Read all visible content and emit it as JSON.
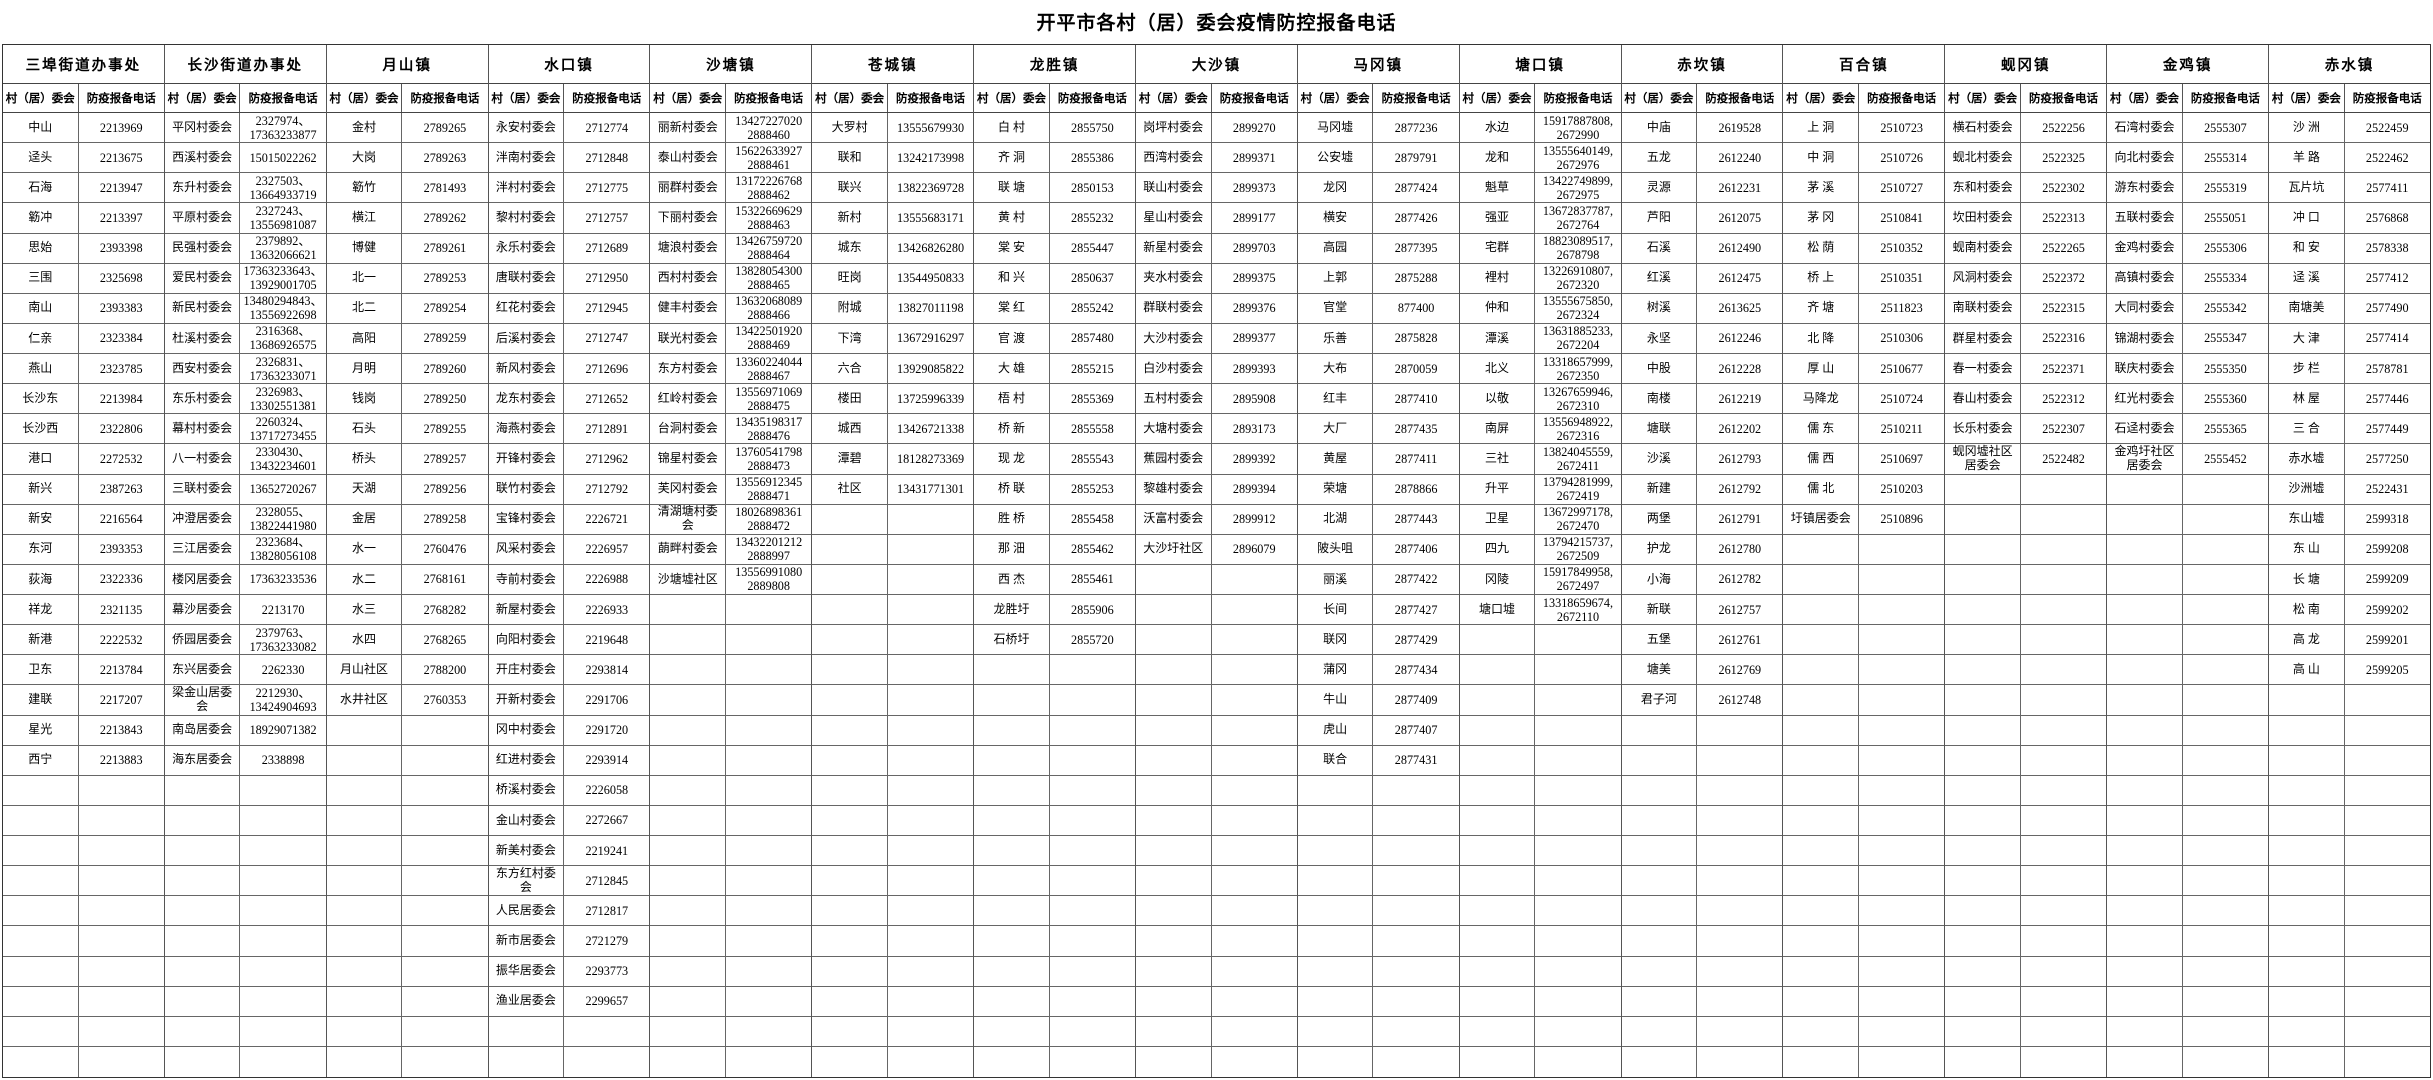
{
  "title": "开平市各村（居）委会疫情防控报备电话",
  "columns": {
    "name": "村（居）委会",
    "phone": "防疫报备电话"
  },
  "groups": [
    {
      "town": "三埠街道办事处",
      "rows": [
        [
          "中山",
          "2213969"
        ],
        [
          "迳头",
          "2213675"
        ],
        [
          "石海",
          "2213947"
        ],
        [
          "簕冲",
          "2213397"
        ],
        [
          "思始",
          "2393398"
        ],
        [
          "三围",
          "2325698"
        ],
        [
          "南山",
          "2393383"
        ],
        [
          "仁亲",
          "2323384"
        ],
        [
          "燕山",
          "2323785"
        ],
        [
          "长沙东",
          "2213984"
        ],
        [
          "长沙西",
          "2322806"
        ],
        [
          "港口",
          "2272532"
        ],
        [
          "新兴",
          "2387263"
        ],
        [
          "新安",
          "2216564"
        ],
        [
          "东河",
          "2393353"
        ],
        [
          "荻海",
          "2322336"
        ],
        [
          "祥龙",
          "2321135"
        ],
        [
          "新港",
          "2222532"
        ],
        [
          "卫东",
          "2213784"
        ],
        [
          "建联",
          "2217207"
        ],
        [
          "星光",
          "2213843"
        ],
        [
          "西宁",
          "2213883"
        ]
      ]
    },
    {
      "town": "长沙街道办事处",
      "rows": [
        [
          "平冈村委会",
          "2327974、\n17363233877"
        ],
        [
          "西溪村委会",
          "15015022262"
        ],
        [
          "东升村委会",
          "2327503、\n13664933719"
        ],
        [
          "平原村委会",
          "2327243、\n13556981087"
        ],
        [
          "民强村委会",
          "2379892、\n13632066621"
        ],
        [
          "爱民村委会",
          "17363233643、\n13929001705"
        ],
        [
          "新民村委会",
          "13480294843、\n13556922698"
        ],
        [
          "杜溪村委会",
          "2316368、\n13686926575"
        ],
        [
          "西安村委会",
          "2326831、\n17363233071"
        ],
        [
          "东乐村委会",
          "2326983、\n13302551381"
        ],
        [
          "幕村村委会",
          "2260324、\n13717273455"
        ],
        [
          "八一村委会",
          "2330430、\n13432234601"
        ],
        [
          "三联村委会",
          "13652720267"
        ],
        [
          "冲澄居委会",
          "2328055、\n13822441980"
        ],
        [
          "三江居委会",
          "2323684、\n13828056108"
        ],
        [
          "楼冈居委会",
          "17363233536"
        ],
        [
          "幕沙居委会",
          "2213170"
        ],
        [
          "侨园居委会",
          "2379763、\n17363233082"
        ],
        [
          "东兴居委会",
          "2262330"
        ],
        [
          "梁金山居委会",
          "2212930、\n13424904693"
        ],
        [
          "南岛居委会",
          "18929071382"
        ],
        [
          "海东居委会",
          "2338898"
        ]
      ]
    },
    {
      "town": "月山镇",
      "rows": [
        [
          "金村",
          "2789265"
        ],
        [
          "大岗",
          "2789263"
        ],
        [
          "簕竹",
          "2781493"
        ],
        [
          "横江",
          "2789262"
        ],
        [
          "博健",
          "2789261"
        ],
        [
          "北一",
          "2789253"
        ],
        [
          "北二",
          "2789254"
        ],
        [
          "高阳",
          "2789259"
        ],
        [
          "月明",
          "2789260"
        ],
        [
          "钱岗",
          "2789250"
        ],
        [
          "石头",
          "2789255"
        ],
        [
          "桥头",
          "2789257"
        ],
        [
          "天湖",
          "2789256"
        ],
        [
          "金居",
          "2789258"
        ],
        [
          "水一",
          "2760476"
        ],
        [
          "水二",
          "2768161"
        ],
        [
          "水三",
          "2768282"
        ],
        [
          "水四",
          "2768265"
        ],
        [
          "月山社区",
          "2788200"
        ],
        [
          "水井社区",
          "2760353"
        ]
      ]
    },
    {
      "town": "水口镇",
      "rows": [
        [
          "永安村委会",
          "2712774"
        ],
        [
          "泮南村委会",
          "2712848"
        ],
        [
          "泮村村委会",
          "2712775"
        ],
        [
          "黎村村委会",
          "2712757"
        ],
        [
          "永乐村委会",
          "2712689"
        ],
        [
          "唐联村委会",
          "2712950"
        ],
        [
          "红花村委会",
          "2712945"
        ],
        [
          "后溪村委会",
          "2712747"
        ],
        [
          "新风村委会",
          "2712696"
        ],
        [
          "龙东村委会",
          "2712652"
        ],
        [
          "海燕村委会",
          "2712891"
        ],
        [
          "开锋村委会",
          "2712962"
        ],
        [
          "联竹村委会",
          "2712792"
        ],
        [
          "宝锋村委会",
          "2226721"
        ],
        [
          "风采村委会",
          "2226957"
        ],
        [
          "寺前村委会",
          "2226988"
        ],
        [
          "新屋村委会",
          "2226933"
        ],
        [
          "向阳村委会",
          "2219648"
        ],
        [
          "开庄村委会",
          "2293814"
        ],
        [
          "开新村委会",
          "2291706"
        ],
        [
          "冈中村委会",
          "2291720"
        ],
        [
          "红进村委会",
          "2293914"
        ],
        [
          "桥溪村委会",
          "2226058"
        ],
        [
          "金山村委会",
          "2272667"
        ],
        [
          "新美村委会",
          "2219241"
        ],
        [
          "东方红村委会",
          "2712845"
        ],
        [
          "人民居委会",
          "2712817"
        ],
        [
          "新市居委会",
          "2721279"
        ],
        [
          "振华居委会",
          "2293773"
        ],
        [
          "渔业居委会",
          "2299657"
        ]
      ]
    },
    {
      "town": "沙塘镇",
      "rows": [
        [
          "丽新村委会",
          "13427227020\n2888460"
        ],
        [
          "泰山村委会",
          "15622633927\n2888461"
        ],
        [
          "丽群村委会",
          "13172226768\n2888462"
        ],
        [
          "下丽村委会",
          "15322669629\n2888463"
        ],
        [
          "塘浪村委会",
          "13426759720\n2888464"
        ],
        [
          "西村村委会",
          "13828054300\n2888465"
        ],
        [
          "健丰村委会",
          "13632068089\n2888466"
        ],
        [
          "联光村委会",
          "13422501920\n2888469"
        ],
        [
          "东方村委会",
          "13360224044\n2888467"
        ],
        [
          "红岭村委会",
          "13556971069\n2888475"
        ],
        [
          "台洞村委会",
          "13435198317\n2888476"
        ],
        [
          "锦星村委会",
          "13760541798\n2888473"
        ],
        [
          "芙冈村委会",
          "13556912345\n2888471"
        ],
        [
          "清湖塘村委会",
          "18026898361\n2888472"
        ],
        [
          "蓢畔村委会",
          "13432201212\n2888997"
        ],
        [
          "沙塘墟社区",
          "13556991080\n2889808"
        ]
      ]
    },
    {
      "town": "苍城镇",
      "rows": [
        [
          "大罗村",
          "13555679930"
        ],
        [
          "联和",
          "13242173998"
        ],
        [
          "联兴",
          "13822369728"
        ],
        [
          "新村",
          "13555683171"
        ],
        [
          "城东",
          "13426826280"
        ],
        [
          "旺岗",
          "13544950833"
        ],
        [
          "附城",
          "13827011198"
        ],
        [
          "下湾",
          "13672916297"
        ],
        [
          "六合",
          "13929085822"
        ],
        [
          "楼田",
          "13725996339"
        ],
        [
          "城西",
          "13426721338"
        ],
        [
          "潭碧",
          "18128273369"
        ],
        [
          "社区",
          "13431771301"
        ]
      ]
    },
    {
      "town": "龙胜镇",
      "rows": [
        [
          "白 村",
          "2855750"
        ],
        [
          "齐 洞",
          "2855386"
        ],
        [
          "联 塘",
          "2850153"
        ],
        [
          "黄 村",
          "2855232"
        ],
        [
          "棠 安",
          "2855447"
        ],
        [
          "和 兴",
          "2850637"
        ],
        [
          "棠 红",
          "2855242"
        ],
        [
          "官 渡",
          "2857480"
        ],
        [
          "大 雄",
          "2855215"
        ],
        [
          "梧 村",
          "2855369"
        ],
        [
          "桥 新",
          "2855558"
        ],
        [
          "现 龙",
          "2855543"
        ],
        [
          "桥 联",
          "2855253"
        ],
        [
          "胜 桥",
          "2855458"
        ],
        [
          "那 沺",
          "2855462"
        ],
        [
          "西 杰",
          "2855461"
        ],
        [
          "龙胜圩",
          "2855906"
        ],
        [
          "石桥圩",
          "2855720"
        ]
      ]
    },
    {
      "town": "大沙镇",
      "rows": [
        [
          "岗坪村委会",
          "2899270"
        ],
        [
          "西湾村委会",
          "2899371"
        ],
        [
          "联山村委会",
          "2899373"
        ],
        [
          "星山村委会",
          "2899177"
        ],
        [
          "新星村委会",
          "2899703"
        ],
        [
          "夹水村委会",
          "2899375"
        ],
        [
          "群联村委会",
          "2899376"
        ],
        [
          "大沙村委会",
          "2899377"
        ],
        [
          "白沙村委会",
          "2899393"
        ],
        [
          "五村村委会",
          "2895908"
        ],
        [
          "大塘村委会",
          "2893173"
        ],
        [
          "蕉园村委会",
          "2899392"
        ],
        [
          "黎雄村委会",
          "2899394"
        ],
        [
          "沃富村委会",
          "2899912"
        ],
        [
          "大沙圩社区",
          "2896079"
        ]
      ]
    },
    {
      "town": "马冈镇",
      "rows": [
        [
          "马冈墟",
          "2877236"
        ],
        [
          "公安墟",
          "2879791"
        ],
        [
          "龙冈",
          "2877424"
        ],
        [
          "横安",
          "2877426"
        ],
        [
          "高园",
          "2877395"
        ],
        [
          "上郭",
          "2875288"
        ],
        [
          "官堂",
          "877400"
        ],
        [
          "乐善",
          "2875828"
        ],
        [
          "大布",
          "2870059"
        ],
        [
          "红丰",
          "2877410"
        ],
        [
          "大厂",
          "2877435"
        ],
        [
          "黄屋",
          "2877411"
        ],
        [
          "荣塘",
          "2878866"
        ],
        [
          "北湖",
          "2877443"
        ],
        [
          "陂头咀",
          "2877406"
        ],
        [
          "丽溪",
          "2877422"
        ],
        [
          "长间",
          "2877427"
        ],
        [
          "联冈",
          "2877429"
        ],
        [
          "蒲冈",
          "2877434"
        ],
        [
          "牛山",
          "2877409"
        ],
        [
          "虎山",
          "2877407"
        ],
        [
          "联合",
          "2877431"
        ]
      ]
    },
    {
      "town": "塘口镇",
      "rows": [
        [
          "水边",
          "15917887808,\n2672990"
        ],
        [
          "龙和",
          "13555640149,\n2672976"
        ],
        [
          "魁草",
          "13422749899,\n2672975"
        ],
        [
          "强亚",
          "13672837787,\n2672764"
        ],
        [
          "宅群",
          "18823089517,\n2678798"
        ],
        [
          "裡村",
          "13226910807,\n2672320"
        ],
        [
          "仲和",
          "13555675850,\n2672324"
        ],
        [
          "潭溪",
          "13631885233,\n2672204"
        ],
        [
          "北义",
          "13318657999,\n2672350"
        ],
        [
          "以敬",
          "13267659946,\n2672310"
        ],
        [
          "南屏",
          "13556948922,\n2672316"
        ],
        [
          "三社",
          "13824045559,\n2672411"
        ],
        [
          "升平",
          "13794281999,\n2672419"
        ],
        [
          "卫星",
          "13672997178,\n2672470"
        ],
        [
          "四九",
          "13794215737,\n2672509"
        ],
        [
          "冈陵",
          "15917849958,\n2672497"
        ],
        [
          "塘口墟",
          "13318659674,\n2672110"
        ]
      ]
    },
    {
      "town": "赤坎镇",
      "rows": [
        [
          "中庙",
          "2619528"
        ],
        [
          "五龙",
          "2612240"
        ],
        [
          "灵源",
          "2612231"
        ],
        [
          "芦阳",
          "2612075"
        ],
        [
          "石溪",
          "2612490"
        ],
        [
          "红溪",
          "2612475"
        ],
        [
          "树溪",
          "2613625"
        ],
        [
          "永坚",
          "2612246"
        ],
        [
          "中股",
          "2612228"
        ],
        [
          "南楼",
          "2612219"
        ],
        [
          "塘联",
          "2612202"
        ],
        [
          "沙溪",
          "2612793"
        ],
        [
          "新建",
          "2612792"
        ],
        [
          "两堡",
          "2612791"
        ],
        [
          "护龙",
          "2612780"
        ],
        [
          "小海",
          "2612782"
        ],
        [
          "新联",
          "2612757"
        ],
        [
          "五堡",
          "2612761"
        ],
        [
          "塘美",
          "2612769"
        ],
        [
          "君子河",
          "2612748"
        ]
      ]
    },
    {
      "town": "百合镇",
      "rows": [
        [
          "上 洞",
          "2510723"
        ],
        [
          "中 洞",
          "2510726"
        ],
        [
          "茅 溪",
          "2510727"
        ],
        [
          "茅 冈",
          "2510841"
        ],
        [
          "松 荫",
          "2510352"
        ],
        [
          "桥 上",
          "2510351"
        ],
        [
          "齐 塘",
          "2511823"
        ],
        [
          "北 降",
          "2510306"
        ],
        [
          "厚 山",
          "2510677"
        ],
        [
          "马降龙",
          "2510724"
        ],
        [
          "儒 东",
          "2510211"
        ],
        [
          "儒 西",
          "2510697"
        ],
        [
          "儒 北",
          "2510203"
        ],
        [
          "圩镇居委会",
          "2510896"
        ]
      ]
    },
    {
      "town": "蚬冈镇",
      "rows": [
        [
          "横石村委会",
          "2522256"
        ],
        [
          "蚬北村委会",
          "2522325"
        ],
        [
          "东和村委会",
          "2522302"
        ],
        [
          "坎田村委会",
          "2522313"
        ],
        [
          "蚬南村委会",
          "2522265"
        ],
        [
          "风洞村委会",
          "2522372"
        ],
        [
          "南联村委会",
          "2522315"
        ],
        [
          "群星村委会",
          "2522316"
        ],
        [
          "春一村委会",
          "2522371"
        ],
        [
          "春山村委会",
          "2522312"
        ],
        [
          "长乐村委会",
          "2522307"
        ],
        [
          "蚬冈墟社区居委会",
          "2522482"
        ]
      ]
    },
    {
      "town": "金鸡镇",
      "rows": [
        [
          "石湾村委会",
          "2555307"
        ],
        [
          "向北村委会",
          "2555314"
        ],
        [
          "游东村委会",
          "2555319"
        ],
        [
          "五联村委会",
          "2555051"
        ],
        [
          "金鸡村委会",
          "2555306"
        ],
        [
          "高镇村委会",
          "2555334"
        ],
        [
          "大同村委会",
          "2555342"
        ],
        [
          "锦湖村委会",
          "2555347"
        ],
        [
          "联庆村委会",
          "2555350"
        ],
        [
          "红光村委会",
          "2555360"
        ],
        [
          "石迳村委会",
          "2555365"
        ],
        [
          "金鸡圩社区居委会",
          "2555452"
        ]
      ]
    },
    {
      "town": "赤水镇",
      "rows": [
        [
          "沙 洲",
          "2522459"
        ],
        [
          "羊 路",
          "2522462"
        ],
        [
          "瓦片坑",
          "2577411"
        ],
        [
          "冲 口",
          "2576868"
        ],
        [
          "和 安",
          "2578338"
        ],
        [
          "迳 溪",
          "2577412"
        ],
        [
          "南塘美",
          "2577490"
        ],
        [
          "大 津",
          "2577414"
        ],
        [
          "步 栏",
          "2578781"
        ],
        [
          "林 屋",
          "2577446"
        ],
        [
          "三 合",
          "2577449"
        ],
        [
          "赤水墟",
          "2577250"
        ],
        [
          "沙洲墟",
          "2522431"
        ],
        [
          "东山墟",
          "2599318"
        ],
        [
          "东 山",
          "2599208"
        ],
        [
          "长 塘",
          "2599209"
        ],
        [
          "松 南",
          "2599202"
        ],
        [
          "高 龙",
          "2599201"
        ],
        [
          "高 山",
          "2599205"
        ]
      ]
    }
  ]
}
